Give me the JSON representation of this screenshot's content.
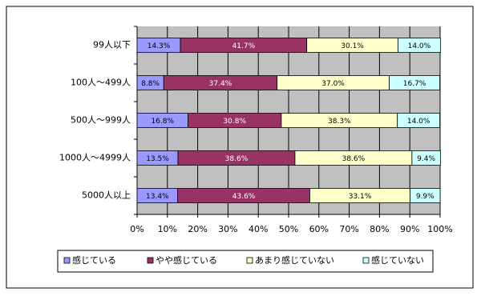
{
  "chart_data": {
    "type": "stacked_bar_horizontal",
    "categories": [
      "99人以下",
      "100人～499人",
      "500人～999人",
      "1000人～4999人",
      "5000人以上"
    ],
    "series": [
      {
        "name": "感じている",
        "color": "#9999ff",
        "values": [
          14.3,
          8.8,
          16.8,
          13.5,
          13.4
        ],
        "value_labels": [
          "14.3%",
          "8.8%",
          "16.8%",
          "13.5%",
          "13.4%"
        ]
      },
      {
        "name": "やや感じている",
        "color": "#993366",
        "values": [
          41.7,
          37.4,
          30.8,
          38.6,
          43.6
        ],
        "value_labels": [
          "41.7%",
          "37.4%",
          "30.8%",
          "38.6%",
          "43.6%"
        ]
      },
      {
        "name": "あまり感じていない",
        "color": "#ffffcc",
        "values": [
          30.1,
          37.0,
          38.3,
          38.6,
          33.1
        ],
        "value_labels": [
          "30.1%",
          "37.0%",
          "38.3%",
          "38.6%",
          "33.1%"
        ]
      },
      {
        "name": "感じていない",
        "color": "#ccffff",
        "values": [
          14.0,
          16.7,
          14.0,
          9.4,
          9.9
        ],
        "value_labels": [
          "14.0%",
          "16.7%",
          "14.0%",
          "9.4%",
          "9.9%"
        ]
      }
    ],
    "xlim": [
      0,
      100
    ],
    "xticks": [
      {
        "value": 0,
        "label": "0%"
      },
      {
        "value": 10,
        "label": "10%"
      },
      {
        "value": 20,
        "label": "20%"
      },
      {
        "value": 30,
        "label": "30%"
      },
      {
        "value": 40,
        "label": "40%"
      },
      {
        "value": 50,
        "label": "50%"
      },
      {
        "value": 60,
        "label": "60%"
      },
      {
        "value": 70,
        "label": "70%"
      },
      {
        "value": 80,
        "label": "80%"
      },
      {
        "value": 90,
        "label": "90%"
      },
      {
        "value": 100,
        "label": "100%"
      }
    ],
    "grid": true,
    "legend": "bottom"
  }
}
